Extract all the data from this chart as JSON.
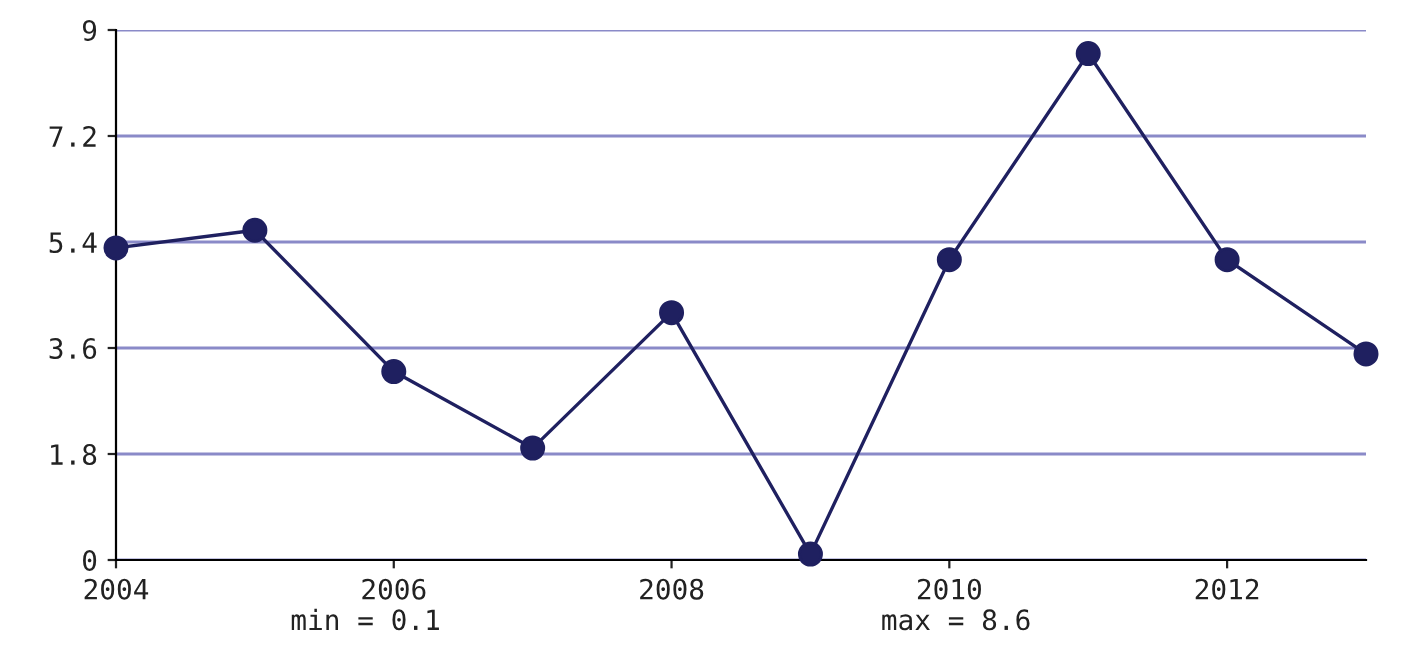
{
  "chart_data": {
    "type": "line",
    "x": [
      2004,
      2005,
      2006,
      2007,
      2008,
      2009,
      2010,
      2011,
      2012,
      2013
    ],
    "series": [
      {
        "color": "#1f2060",
        "values": [
          5.3,
          5.6,
          3.2,
          1.9,
          4.2,
          0.1,
          5.1,
          8.6,
          5.1,
          3.5
        ]
      }
    ],
    "xlim": [
      2004,
      2013
    ],
    "ylim": [
      0,
      9
    ],
    "xticks": [
      2004,
      2006,
      2008,
      2010,
      2012
    ],
    "yticks": [
      0,
      1.8,
      3.6,
      5.4,
      7.2,
      9
    ],
    "grid": "y",
    "marker": "circle",
    "line_style": "solid",
    "legend": false,
    "annotations": [
      "min = 0.1",
      "max = 8.6"
    ]
  }
}
